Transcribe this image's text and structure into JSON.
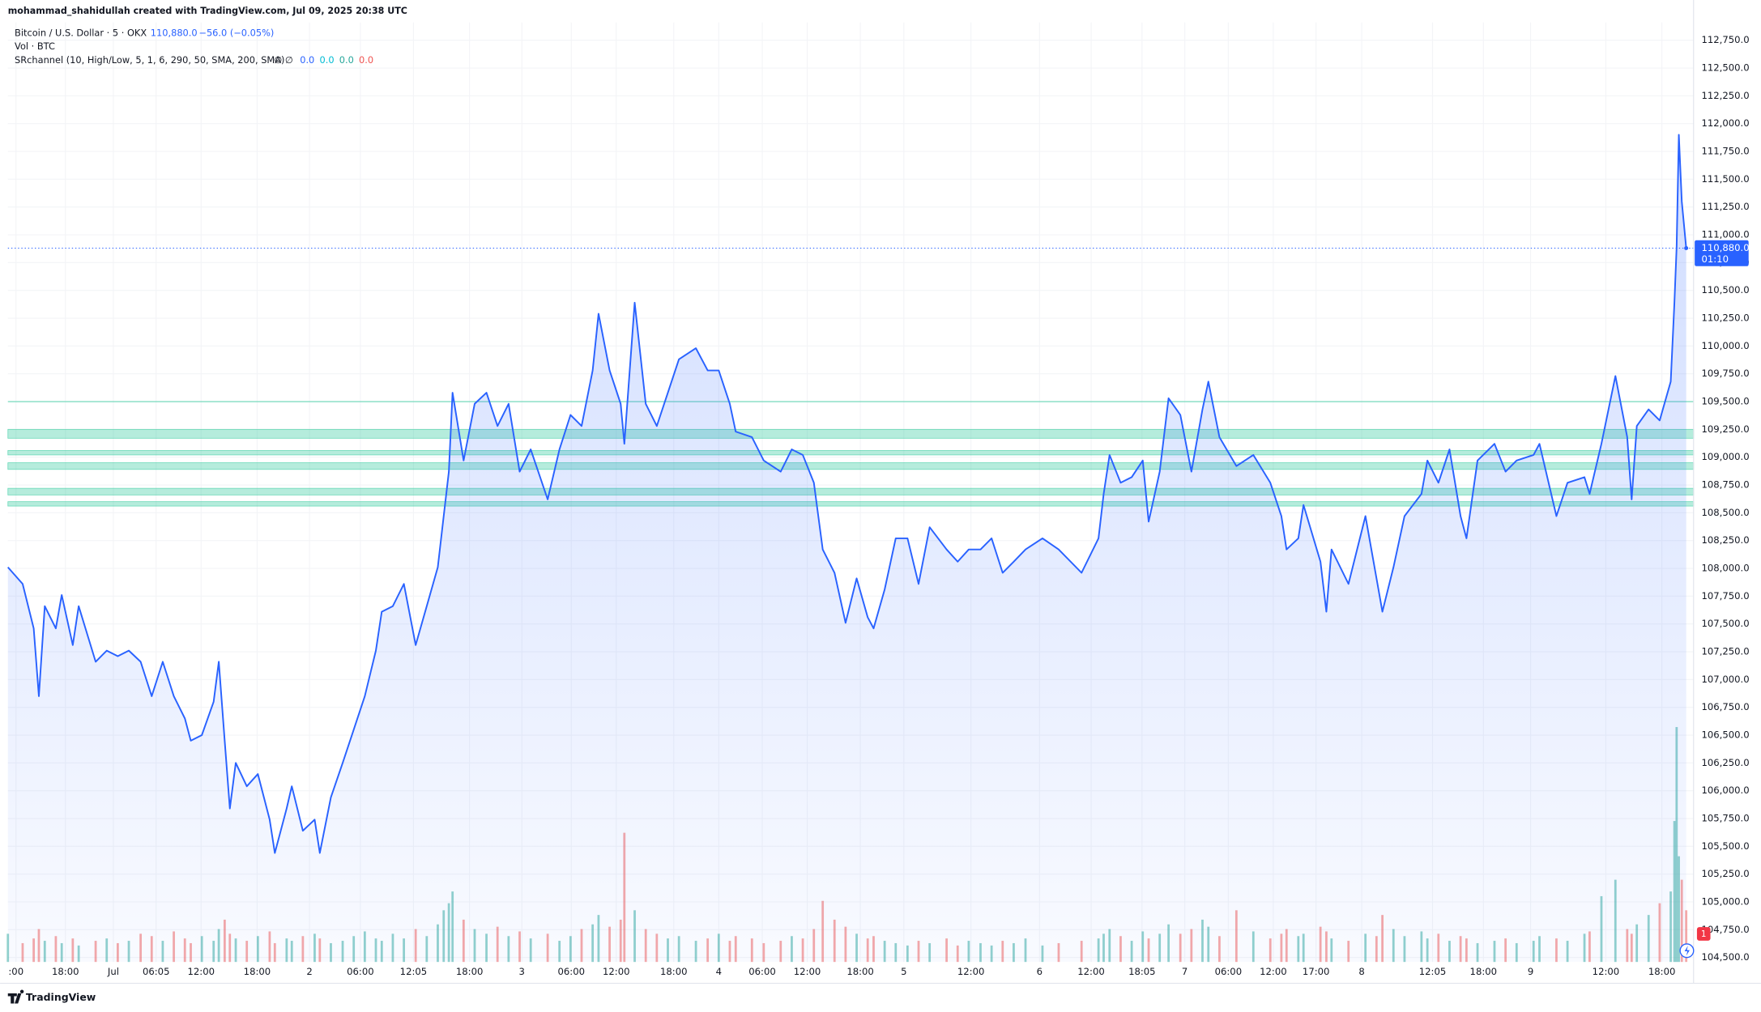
{
  "credit": "mohammad_shahidullah created with TradingView.com, Jul 09, 2025 20:38 UTC",
  "legend": {
    "price": "110,880.0",
    "change": "−56.0 (−0.05%)",
    "indicator": "SRchannel (10, High/Low, 5, 1, 6, 290, 50, SMA, 200, SMA)",
    "indicator_icons": "∅ ∅",
    "indicator_values": [
      {
        "label": "0.0",
        "color": "#2962ff"
      },
      {
        "label": "0.0",
        "color": "#00bcd4"
      },
      {
        "label": "0.0",
        "color": "#26a69a"
      },
      {
        "label": "0.0",
        "color": "#ef5350"
      }
    ]
  },
  "footer": "TradingView",
  "alert_count": 1,
  "chart_data": {
    "type": "line",
    "area": true,
    "x": [
      -14.3,
      -12.3,
      -10.8,
      -10.1,
      -9.3,
      -7.8,
      -7.0,
      -5.5,
      -4.7,
      -2.4,
      -0.9,
      0.6,
      2.1,
      3.7,
      5.2,
      6.7,
      8.2,
      9.7,
      10.5,
      12.0,
      13.6,
      14.3,
      15.1,
      15.8,
      16.6,
      18.1,
      19.6,
      21.2,
      21.9,
      23.5,
      24.2,
      25.7,
      27.3,
      28.0,
      29.5,
      31.1,
      32.6,
      34.1,
      35.6,
      36.4,
      37.9,
      39.4,
      41.0,
      42.5,
      44.0,
      44.8,
      45.5,
      46.0,
      47.5,
      49.0,
      50.6,
      52.1,
      53.6,
      55.1,
      56.6,
      58.9,
      60.5,
      62.0,
      63.5,
      65.0,
      65.8,
      67.3,
      68.8,
      69.3,
      70.7,
      72.2,
      73.7,
      75.2,
      76.7,
      79.0,
      80.6,
      82.1,
      83.6,
      84.4,
      86.6,
      88.2,
      90.5,
      92.0,
      93.5,
      95.0,
      96.2,
      97.8,
      99.3,
      100.8,
      102.3,
      103.1,
      104.6,
      106.1,
      107.7,
      109.2,
      110.7,
      113.0,
      114.5,
      116.0,
      117.6,
      119.1,
      120.6,
      122.1,
      123.7,
      126.0,
      128.2,
      131.3,
      133.6,
      134.3,
      135.1,
      136.6,
      138.1,
      139.6,
      140.4,
      141.9,
      143.1,
      144.7,
      146.2,
      147.7,
      148.5,
      150.0,
      152.3,
      154.6,
      156.9,
      158.4,
      159.1,
      160.7,
      161.4,
      163.7,
      164.5,
      165.2,
      167.5,
      169.8,
      171.3,
      172.1,
      173.6,
      175.1,
      177.4,
      178.2,
      179.7,
      181.2,
      182.7,
      183.5,
      185.0,
      187.3,
      188.8,
      190.3,
      192.6,
      193.4,
      195.7,
      197.2,
      199.5,
      200.2,
      201.8,
      203.7,
      205.3,
      205.9,
      206.6,
      208.2,
      209.7,
      211.2,
      211.7,
      212.0,
      212.3,
      212.7,
      213.3
    ],
    "series": [
      {
        "name": "Bitcoin / U.S. Dollar · 5 · OKX",
        "color": "#2962ff",
        "values": [
          108010,
          107860,
          107460,
          106850,
          107660,
          107460,
          107760,
          107310,
          107660,
          107160,
          107260,
          107210,
          107260,
          107160,
          106850,
          107160,
          106850,
          106650,
          106450,
          106500,
          106800,
          107160,
          106450,
          105840,
          106250,
          106040,
          106150,
          105740,
          105440,
          105840,
          106040,
          105640,
          105740,
          105440,
          105940,
          106250,
          106550,
          106850,
          107260,
          107610,
          107660,
          107860,
          107310,
          107660,
          108010,
          108470,
          108870,
          109580,
          108970,
          109480,
          109580,
          109280,
          109480,
          108870,
          109070,
          108620,
          109070,
          109380,
          109280,
          109780,
          110290,
          109780,
          109480,
          109120,
          110390,
          109480,
          109280,
          109580,
          109880,
          109980,
          109780,
          109780,
          109480,
          109230,
          109180,
          108970,
          108870,
          109070,
          109020,
          108770,
          108170,
          107960,
          107510,
          107910,
          107560,
          107460,
          107810,
          108270,
          108270,
          107860,
          108370,
          108170,
          108060,
          108170,
          108170,
          108270,
          107960,
          108060,
          108170,
          108270,
          108170,
          107960,
          108270,
          108670,
          109020,
          108770,
          108820,
          108970,
          108420,
          108870,
          109530,
          109380,
          108870,
          109430,
          109680,
          109180,
          108920,
          109020,
          108770,
          108470,
          108170,
          108270,
          108570,
          108060,
          107610,
          108170,
          107860,
          108470,
          107910,
          107610,
          108010,
          108470,
          108670,
          108970,
          108770,
          109070,
          108470,
          108270,
          108970,
          109120,
          108870,
          108970,
          109020,
          109120,
          108470,
          108770,
          108820,
          108670,
          109120,
          109730,
          109180,
          108620,
          109280,
          109430,
          109330,
          109680,
          110390,
          110890,
          111900,
          111300,
          110880
        ]
      },
      {
        "name": "Vol · BTC",
        "axis": "y2",
        "color": "#26a69a",
        "down_color": "#ef5350",
        "values": [
          12,
          8,
          10,
          14,
          9,
          11,
          8,
          10,
          7,
          9,
          10,
          8,
          9,
          12,
          11,
          9,
          13,
          10,
          8,
          11,
          9,
          14,
          18,
          12,
          10,
          9,
          11,
          13,
          8,
          10,
          9,
          11,
          12,
          10,
          8,
          9,
          11,
          13,
          10,
          9,
          12,
          10,
          14,
          11,
          16,
          22,
          25,
          30,
          18,
          14,
          12,
          15,
          11,
          13,
          10,
          12,
          9,
          11,
          14,
          16,
          20,
          15,
          18,
          55,
          22,
          14,
          12,
          10,
          11,
          9,
          10,
          12,
          9,
          11,
          10,
          8,
          9,
          11,
          10,
          14,
          26,
          18,
          15,
          12,
          10,
          11,
          9,
          8,
          7,
          9,
          8,
          10,
          7,
          9,
          8,
          7,
          9,
          8,
          10,
          7,
          8,
          9,
          10,
          12,
          14,
          11,
          9,
          13,
          10,
          12,
          16,
          12,
          14,
          18,
          15,
          11,
          22,
          13,
          10,
          12,
          14,
          11,
          12,
          15,
          13,
          10,
          9,
          12,
          11,
          20,
          14,
          11,
          13,
          10,
          12,
          9,
          11,
          10,
          8,
          9,
          10,
          8,
          9,
          11,
          10,
          9,
          12,
          13,
          28,
          35,
          14,
          12,
          16,
          20,
          25,
          30,
          60,
          100,
          45,
          35,
          22
        ]
      }
    ],
    "xlim": [
      -14.3,
      214.3
    ],
    "ylim": [
      104460,
      112910
    ],
    "y2lim": [
      0,
      400
    ],
    "xticks": [
      {
        "value": -13.2,
        "label": ":00"
      },
      {
        "value": -6.5,
        "label": "18:00"
      },
      {
        "value": 0,
        "label": "Jul"
      },
      {
        "value": 5.8,
        "label": "06:05"
      },
      {
        "value": 11.9,
        "label": "12:00"
      },
      {
        "value": 19.5,
        "label": "18:00"
      },
      {
        "value": 26.6,
        "label": "2"
      },
      {
        "value": 33.5,
        "label": "06:00"
      },
      {
        "value": 40.7,
        "label": "12:05"
      },
      {
        "value": 48.3,
        "label": "18:00"
      },
      {
        "value": 55.4,
        "label": "3"
      },
      {
        "value": 62.1,
        "label": "06:00"
      },
      {
        "value": 68.2,
        "label": "12:00"
      },
      {
        "value": 76.0,
        "label": "18:00"
      },
      {
        "value": 82.1,
        "label": "4"
      },
      {
        "value": 88.0,
        "label": "06:00"
      },
      {
        "value": 94.1,
        "label": "12:00"
      },
      {
        "value": 101.3,
        "label": "18:00"
      },
      {
        "value": 107.2,
        "label": "5"
      },
      {
        "value": 116.3,
        "label": "12:00"
      },
      {
        "value": 125.6,
        "label": "6"
      },
      {
        "value": 132.6,
        "label": "12:00"
      },
      {
        "value": 139.5,
        "label": "18:05"
      },
      {
        "value": 145.3,
        "label": "7"
      },
      {
        "value": 151.2,
        "label": "06:00"
      },
      {
        "value": 157.3,
        "label": "12:00"
      },
      {
        "value": 163.1,
        "label": "17:00"
      },
      {
        "value": 169.3,
        "label": "8"
      },
      {
        "value": 178.9,
        "label": "12:05"
      },
      {
        "value": 185.8,
        "label": "18:00"
      },
      {
        "value": 192.2,
        "label": "9"
      },
      {
        "value": 202.4,
        "label": "12:00"
      },
      {
        "value": 210.0,
        "label": "18:00"
      }
    ],
    "yticks": [
      {
        "value": 104500,
        "label": "104,500.0"
      },
      {
        "value": 104750,
        "label": "104,750.0"
      },
      {
        "value": 105000,
        "label": "105,000.0"
      },
      {
        "value": 105250,
        "label": "105,250.0"
      },
      {
        "value": 105500,
        "label": "105,500.0"
      },
      {
        "value": 105750,
        "label": "105,750.0"
      },
      {
        "value": 106000,
        "label": "106,000.0"
      },
      {
        "value": 106250,
        "label": "106,250.0"
      },
      {
        "value": 106500,
        "label": "106,500.0"
      },
      {
        "value": 106750,
        "label": "106,750.0"
      },
      {
        "value": 107000,
        "label": "107,000.0"
      },
      {
        "value": 107250,
        "label": "107,250.0"
      },
      {
        "value": 107500,
        "label": "107,500.0"
      },
      {
        "value": 107750,
        "label": "107,750.0"
      },
      {
        "value": 108000,
        "label": "108,000.0"
      },
      {
        "value": 108250,
        "label": "108,250.0"
      },
      {
        "value": 108500,
        "label": "108,500.0"
      },
      {
        "value": 108750,
        "label": "108,750.0"
      },
      {
        "value": 109000,
        "label": "109,000.0"
      },
      {
        "value": 109250,
        "label": "109,250.0"
      },
      {
        "value": 109500,
        "label": "109,500.0"
      },
      {
        "value": 109750,
        "label": "109,750.0"
      },
      {
        "value": 110000,
        "label": "110,000.0"
      },
      {
        "value": 110250,
        "label": "110,250.0"
      },
      {
        "value": 110500,
        "label": "110,500.0"
      },
      {
        "value": 110750,
        "label": "110,750.0"
      },
      {
        "value": 111000,
        "label": "111,000.0"
      },
      {
        "value": 111250,
        "label": "111,250.0"
      },
      {
        "value": 111500,
        "label": "111,500.0"
      },
      {
        "value": 111750,
        "label": "111,750.0"
      },
      {
        "value": 112000,
        "label": "112,000.0"
      },
      {
        "value": 112250,
        "label": "112,250.0"
      },
      {
        "value": 112500,
        "label": "112,500.0"
      },
      {
        "value": 112750,
        "label": "112,750.0"
      }
    ],
    "grid": true,
    "last_price": 110880,
    "last_price_label": "110,880.0",
    "countdown": "01:10",
    "sr_color": "#2bc99a",
    "sr_line": 109500,
    "sr_zones": [
      {
        "low": 109170,
        "high": 109250
      },
      {
        "low": 109020,
        "high": 109060
      },
      {
        "low": 108890,
        "high": 108950
      },
      {
        "low": 108660,
        "high": 108720
      },
      {
        "low": 108560,
        "high": 108600
      }
    ]
  }
}
